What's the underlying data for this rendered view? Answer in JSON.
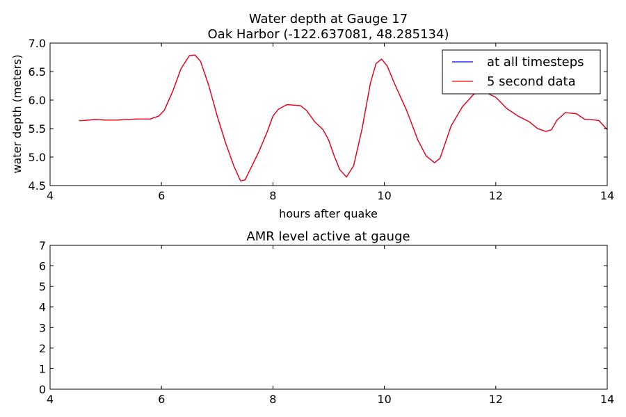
{
  "chart_data": [
    {
      "type": "line",
      "title": "Water depth at Gauge 17",
      "subtitle": "Oak Harbor  (-122.637081, 48.285134)",
      "xlabel": "hours after quake",
      "ylabel": "water depth (meters)",
      "xlim": [
        4,
        14
      ],
      "ylim": [
        4.5,
        7.0
      ],
      "xticks": [
        "4",
        "6",
        "8",
        "10",
        "12",
        "14"
      ],
      "yticks": [
        "4.5",
        "5.0",
        "5.5",
        "6.0",
        "6.5",
        "7.0"
      ],
      "grid": false,
      "legend_position": "top-right",
      "x": [
        4.52,
        4.6,
        4.8,
        5.0,
        5.2,
        5.4,
        5.6,
        5.8,
        5.95,
        6.05,
        6.2,
        6.35,
        6.5,
        6.6,
        6.7,
        6.85,
        7.0,
        7.15,
        7.3,
        7.42,
        7.5,
        7.6,
        7.75,
        7.9,
        8.0,
        8.1,
        8.25,
        8.4,
        8.5,
        8.6,
        8.75,
        8.9,
        9.0,
        9.1,
        9.2,
        9.32,
        9.45,
        9.6,
        9.75,
        9.85,
        9.95,
        10.05,
        10.2,
        10.4,
        10.6,
        10.75,
        10.9,
        11.0,
        11.2,
        11.4,
        11.6,
        11.75,
        11.85,
        12.0,
        12.2,
        12.4,
        12.6,
        12.75,
        12.9,
        13.0,
        13.1,
        13.25,
        13.45,
        13.6,
        13.7,
        13.85,
        14.0
      ],
      "series": [
        {
          "name": "at all timesteps",
          "color": "#0000ff",
          "values": [
            5.64,
            5.64,
            5.66,
            5.65,
            5.65,
            5.66,
            5.67,
            5.67,
            5.72,
            5.82,
            6.15,
            6.55,
            6.78,
            6.79,
            6.68,
            6.25,
            5.72,
            5.25,
            4.84,
            4.58,
            4.6,
            4.8,
            5.1,
            5.45,
            5.72,
            5.84,
            5.92,
            5.91,
            5.9,
            5.82,
            5.62,
            5.48,
            5.3,
            5.02,
            4.78,
            4.65,
            4.85,
            5.5,
            6.3,
            6.64,
            6.72,
            6.6,
            6.25,
            5.82,
            5.3,
            5.02,
            4.9,
            4.98,
            5.55,
            5.88,
            6.1,
            6.15,
            6.12,
            6.05,
            5.85,
            5.72,
            5.62,
            5.5,
            5.45,
            5.48,
            5.65,
            5.78,
            5.76,
            5.66,
            5.66,
            5.64,
            5.48
          ]
        },
        {
          "name": "5 second data",
          "color": "#ff0000",
          "values": [
            5.64,
            5.64,
            5.66,
            5.65,
            5.65,
            5.66,
            5.67,
            5.67,
            5.72,
            5.82,
            6.15,
            6.55,
            6.78,
            6.79,
            6.68,
            6.25,
            5.72,
            5.25,
            4.84,
            4.58,
            4.6,
            4.8,
            5.1,
            5.45,
            5.72,
            5.84,
            5.92,
            5.91,
            5.9,
            5.82,
            5.62,
            5.48,
            5.3,
            5.02,
            4.78,
            4.65,
            4.85,
            5.5,
            6.3,
            6.64,
            6.72,
            6.6,
            6.25,
            5.82,
            5.3,
            5.02,
            4.9,
            4.98,
            5.55,
            5.88,
            6.1,
            6.15,
            6.12,
            6.05,
            5.85,
            5.72,
            5.62,
            5.5,
            5.45,
            5.48,
            5.65,
            5.78,
            5.76,
            5.66,
            5.66,
            5.64,
            5.48
          ]
        }
      ]
    },
    {
      "type": "line",
      "title": "AMR level active at gauge",
      "xlabel": "",
      "ylabel": "",
      "xlim": [
        4,
        14
      ],
      "ylim": [
        0,
        7
      ],
      "xticks": [
        "4",
        "6",
        "8",
        "10",
        "12",
        "14"
      ],
      "yticks": [
        "0",
        "1",
        "2",
        "3",
        "4",
        "5",
        "6",
        "7"
      ],
      "grid": false,
      "series": []
    }
  ]
}
